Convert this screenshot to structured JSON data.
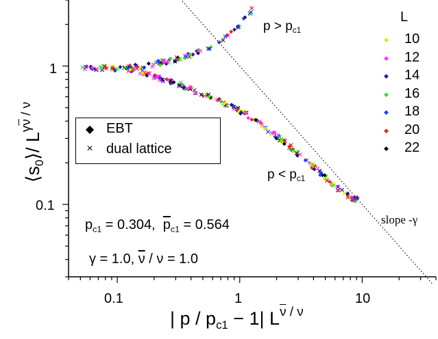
{
  "chart_data": {
    "type": "scatter",
    "x_scale": "log",
    "y_scale": "log",
    "xlim": [
      0.04,
      40
    ],
    "ylim": [
      0.03,
      3
    ],
    "x_ticks": [
      "0.1",
      "1",
      "10"
    ],
    "y_ticks": [
      "0.1",
      "1"
    ],
    "xlabel": {
      "pre": "| p / p",
      "sub": "c1",
      "mid": " − 1| L",
      "sup_bar": "ν",
      "sup_rest": " / ν"
    },
    "ylabel": {
      "pre": "⟨s",
      "sub": "0",
      "mid": "⟩/ L",
      "sup_pre": "γ",
      "sup_bar": "ν",
      "sup_rest": " / ν"
    },
    "slope_line": {
      "label": "slope -γ",
      "slope": -1,
      "through": [
        1,
        1.0
      ]
    },
    "annotations": {
      "upper": {
        "pre": "p > p",
        "sub": "c1"
      },
      "lower": {
        "pre": "p < p",
        "sub": "c1"
      },
      "pc1": {
        "pre": "p",
        "sub": "c1",
        "val": " = 0.304,",
        "bar": "p",
        "sub2": "c1",
        "val2": " = 0.564"
      },
      "gamma": {
        "pre": "γ = 1.0,  ",
        "bar": "ν",
        "rest": " / ν = 1.0"
      }
    },
    "legend_methods": [
      {
        "label": "EBT",
        "symbol": "diamond"
      },
      {
        "label": "dual lattice",
        "symbol": "cross"
      }
    ],
    "legend_L_title": "L",
    "series": [
      {
        "name": "10",
        "color": "#e6e600"
      },
      {
        "name": "12",
        "color": "#ff33ff"
      },
      {
        "name": "14",
        "color": "#1a1aa0"
      },
      {
        "name": "16",
        "color": "#33dd33"
      },
      {
        "name": "18",
        "color": "#1e3cff"
      },
      {
        "name": "20",
        "color": "#ee2222"
      },
      {
        "name": "22",
        "color": "#000000"
      }
    ],
    "upper_branch": [
      [
        0.052,
        0.98
      ],
      [
        0.07,
        0.97
      ],
      [
        0.09,
        0.96
      ],
      [
        0.11,
        0.97
      ],
      [
        0.14,
        0.99
      ],
      [
        0.18,
        1.02
      ],
      [
        0.23,
        1.06
      ],
      [
        0.3,
        1.12
      ],
      [
        0.38,
        1.2
      ],
      [
        0.5,
        1.3
      ],
      [
        0.65,
        1.48
      ],
      [
        0.8,
        1.68
      ],
      [
        1.0,
        2.0
      ],
      [
        1.2,
        2.4
      ],
      [
        1.4,
        2.9
      ]
    ],
    "lower_branch": [
      [
        0.12,
        0.96
      ],
      [
        0.16,
        0.9
      ],
      [
        0.2,
        0.84
      ],
      [
        0.26,
        0.78
      ],
      [
        0.33,
        0.73
      ],
      [
        0.42,
        0.67
      ],
      [
        0.55,
        0.61
      ],
      [
        0.7,
        0.56
      ],
      [
        0.9,
        0.5
      ],
      [
        1.2,
        0.43
      ],
      [
        1.6,
        0.36
      ],
      [
        2.0,
        0.31
      ],
      [
        2.6,
        0.26
      ],
      [
        3.3,
        0.215
      ],
      [
        4.2,
        0.18
      ],
      [
        5.3,
        0.15
      ],
      [
        6.5,
        0.128
      ],
      [
        8.0,
        0.113
      ],
      [
        9.5,
        0.106
      ]
    ]
  }
}
